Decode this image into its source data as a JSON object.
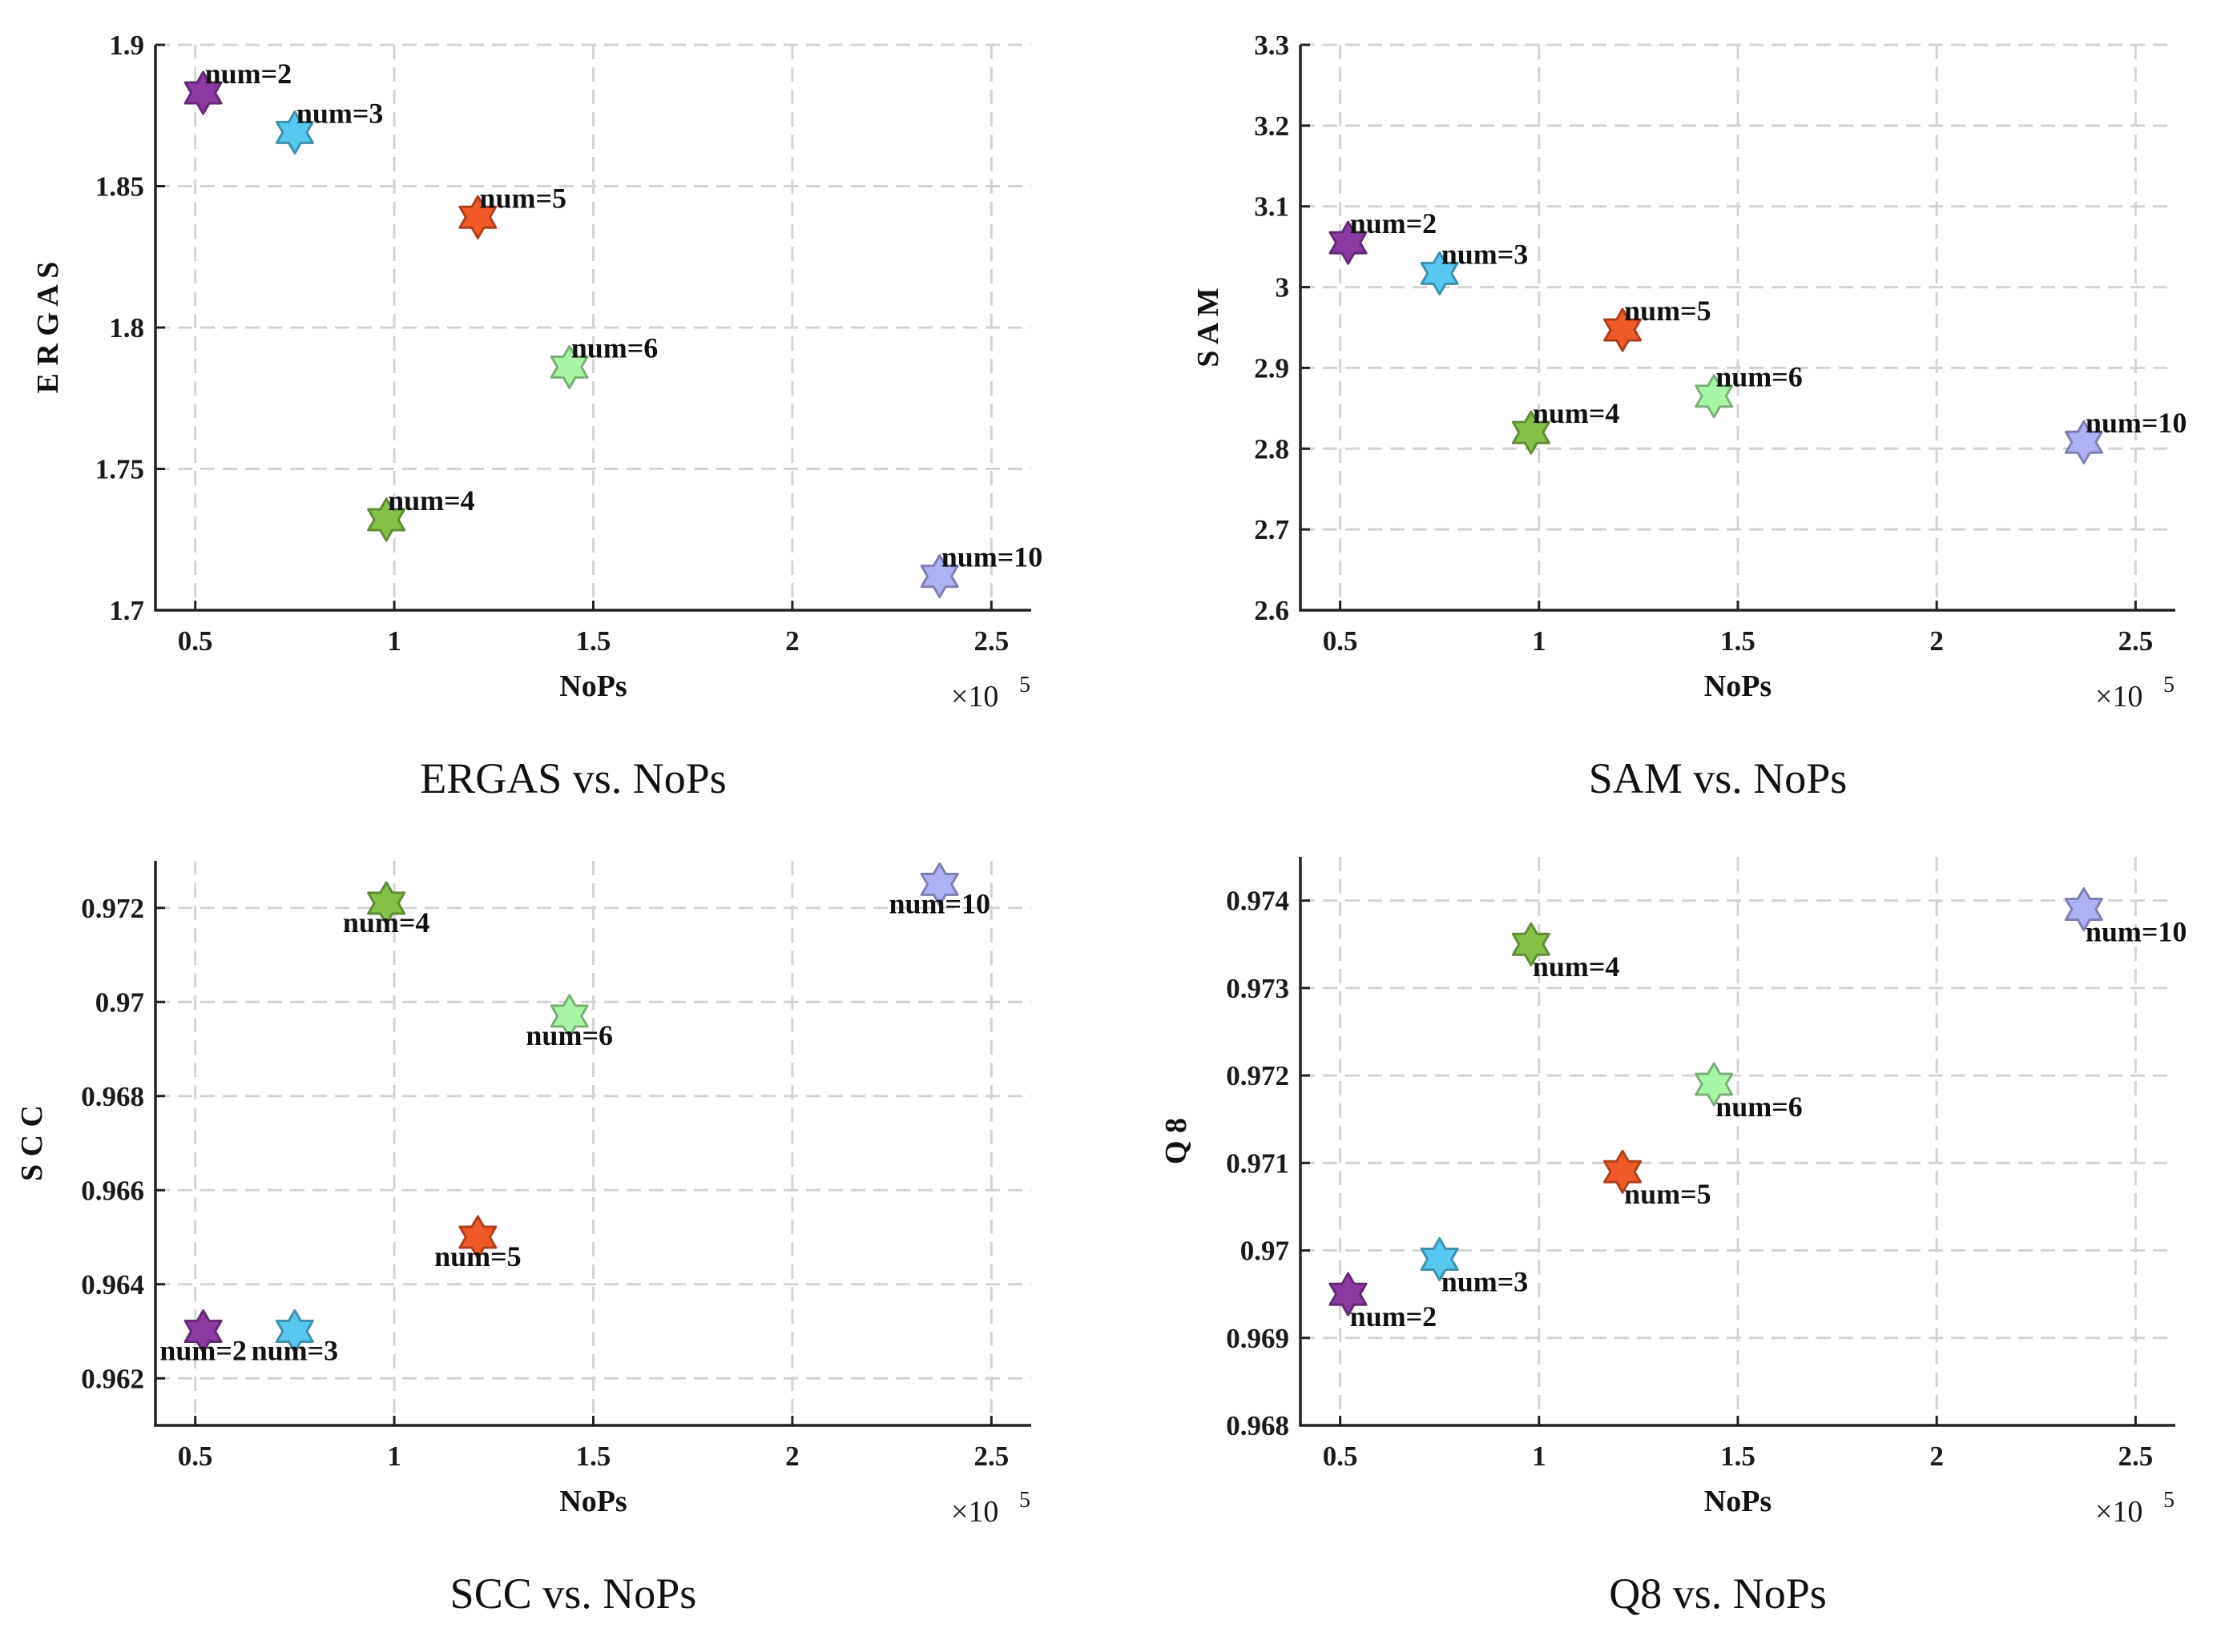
{
  "colors": {
    "num=2": "#8a3aa0",
    "num=3": "#57c9f0",
    "num=4": "#86c24a",
    "num=5": "#f05a28",
    "num=6": "#a9f5a6",
    "num=10": "#aeb2f5"
  },
  "chart_data": [
    {
      "id": "ergas",
      "type": "scatter",
      "title": "ERGAS vs. NoPs",
      "xlabel": "NoPs",
      "ylabel": "E R G A S",
      "x_multiplier": "×10",
      "x_multiplier_exp": "5",
      "xlim": [
        0.4,
        2.6
      ],
      "ylim": [
        1.7,
        1.9
      ],
      "xticks": [
        0.5,
        1,
        1.5,
        2,
        2.5
      ],
      "xtick_labels": [
        "0.5",
        "1",
        "1.5",
        "2",
        "2.5"
      ],
      "yticks": [
        1.7,
        1.75,
        1.8,
        1.85,
        1.9
      ],
      "ytick_labels": [
        "1.7",
        "1.75",
        "1.8",
        "1.85",
        "1.9"
      ],
      "label_position": "upper-right",
      "points": [
        {
          "label": "num=2",
          "x": 0.52,
          "y": 1.883
        },
        {
          "label": "num=3",
          "x": 0.75,
          "y": 1.869
        },
        {
          "label": "num=5",
          "x": 1.21,
          "y": 1.839
        },
        {
          "label": "num=6",
          "x": 1.44,
          "y": 1.786
        },
        {
          "label": "num=4",
          "x": 0.98,
          "y": 1.732
        },
        {
          "label": "num=10",
          "x": 2.37,
          "y": 1.712
        }
      ]
    },
    {
      "id": "sam",
      "type": "scatter",
      "title": "SAM vs. NoPs",
      "xlabel": "NoPs",
      "ylabel": "S A M",
      "x_multiplier": "×10",
      "x_multiplier_exp": "5",
      "xlim": [
        0.4,
        2.6
      ],
      "ylim": [
        2.6,
        3.3
      ],
      "xticks": [
        0.5,
        1,
        1.5,
        2,
        2.5
      ],
      "xtick_labels": [
        "0.5",
        "1",
        "1.5",
        "2",
        "2.5"
      ],
      "yticks": [
        2.6,
        2.7,
        2.8,
        2.9,
        3.0,
        3.1,
        3.2,
        3.3
      ],
      "ytick_labels": [
        "2.6",
        "2.7",
        "2.8",
        "2.9",
        "3",
        "3.1",
        "3.2",
        "3.3"
      ],
      "label_position": "upper-right",
      "points": [
        {
          "label": "num=2",
          "x": 0.52,
          "y": 3.055
        },
        {
          "label": "num=3",
          "x": 0.75,
          "y": 3.017
        },
        {
          "label": "num=5",
          "x": 1.21,
          "y": 2.947
        },
        {
          "label": "num=6",
          "x": 1.44,
          "y": 2.865
        },
        {
          "label": "num=4",
          "x": 0.98,
          "y": 2.82
        },
        {
          "label": "num=10",
          "x": 2.37,
          "y": 2.808
        }
      ]
    },
    {
      "id": "scc",
      "type": "scatter",
      "title": "SCC vs. NoPs",
      "xlabel": "NoPs",
      "ylabel": "S C C",
      "x_multiplier": "×10",
      "x_multiplier_exp": "5",
      "xlim": [
        0.4,
        2.6
      ],
      "ylim": [
        0.961,
        0.973
      ],
      "xticks": [
        0.5,
        1,
        1.5,
        2,
        2.5
      ],
      "xtick_labels": [
        "0.5",
        "1",
        "1.5",
        "2",
        "2.5"
      ],
      "yticks": [
        0.962,
        0.964,
        0.966,
        0.968,
        0.97,
        0.972
      ],
      "ytick_labels": [
        "0.962",
        "0.964",
        "0.966",
        "0.968",
        "0.97",
        "0.972"
      ],
      "label_position": "below",
      "points": [
        {
          "label": "num=10",
          "x": 2.37,
          "y": 0.9725
        },
        {
          "label": "num=4",
          "x": 0.98,
          "y": 0.9721
        },
        {
          "label": "num=6",
          "x": 1.44,
          "y": 0.9697
        },
        {
          "label": "num=5",
          "x": 1.21,
          "y": 0.965
        },
        {
          "label": "num=2",
          "x": 0.52,
          "y": 0.963
        },
        {
          "label": "num=3",
          "x": 0.75,
          "y": 0.963
        }
      ]
    },
    {
      "id": "q8",
      "type": "scatter",
      "title": "Q8 vs. NoPs",
      "xlabel": "NoPs",
      "ylabel": "Q 8",
      "x_multiplier": "×10",
      "x_multiplier_exp": "5",
      "xlim": [
        0.4,
        2.6
      ],
      "ylim": [
        0.968,
        0.9745
      ],
      "xticks": [
        0.5,
        1,
        1.5,
        2,
        2.5
      ],
      "xtick_labels": [
        "0.5",
        "1",
        "1.5",
        "2",
        "2.5"
      ],
      "yticks": [
        0.968,
        0.969,
        0.97,
        0.971,
        0.972,
        0.973,
        0.974
      ],
      "ytick_labels": [
        "0.968",
        "0.969",
        "0.97",
        "0.971",
        "0.972",
        "0.973",
        "0.974"
      ],
      "label_position": "lower-right",
      "points": [
        {
          "label": "num=10",
          "x": 2.37,
          "y": 0.9739
        },
        {
          "label": "num=4",
          "x": 0.98,
          "y": 0.9735
        },
        {
          "label": "num=6",
          "x": 1.44,
          "y": 0.9719
        },
        {
          "label": "num=5",
          "x": 1.21,
          "y": 0.9709
        },
        {
          "label": "num=3",
          "x": 0.75,
          "y": 0.9699
        },
        {
          "label": "num=2",
          "x": 0.52,
          "y": 0.9695
        }
      ]
    }
  ]
}
